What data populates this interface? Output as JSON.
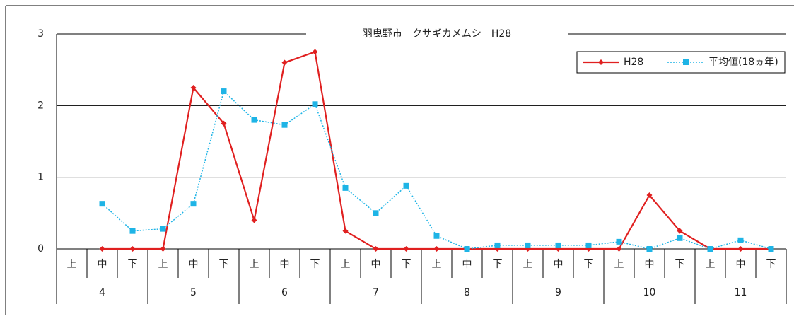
{
  "chart_data": {
    "type": "line",
    "title": "羽曳野市　クサギカメムシ　H28",
    "categories": [
      "上",
      "中",
      "下",
      "上",
      "中",
      "下",
      "上",
      "中",
      "下",
      "上",
      "中",
      "下",
      "上",
      "中",
      "下",
      "上",
      "中",
      "下",
      "上",
      "中",
      "下",
      "上",
      "中",
      "下"
    ],
    "groups": [
      "4",
      "5",
      "6",
      "7",
      "8",
      "9",
      "10",
      "11"
    ],
    "series": [
      {
        "name": "H28",
        "color": "#e02020",
        "marker": "diamond",
        "dash": "solid",
        "values": [
          null,
          0,
          0,
          0,
          2.25,
          1.75,
          0.4,
          2.6,
          2.75,
          0.25,
          0,
          0,
          0,
          0,
          0,
          0,
          0,
          0,
          0,
          0.75,
          0.25,
          0,
          0,
          0
        ]
      },
      {
        "name": "平均値(18ヵ年)",
        "color": "#1eb4e6",
        "marker": "square",
        "dash": "dotted",
        "values": [
          null,
          0.63,
          0.25,
          0.28,
          0.63,
          2.2,
          1.8,
          1.73,
          2.02,
          0.85,
          0.5,
          0.88,
          0.18,
          0,
          0.05,
          0.05,
          0.05,
          0.05,
          0.1,
          0,
          0.15,
          0,
          0.12,
          0
        ]
      }
    ],
    "ylim": [
      0,
      3
    ],
    "yticks": [
      0,
      1,
      2,
      3
    ],
    "grid": true,
    "legend": "top-right"
  }
}
